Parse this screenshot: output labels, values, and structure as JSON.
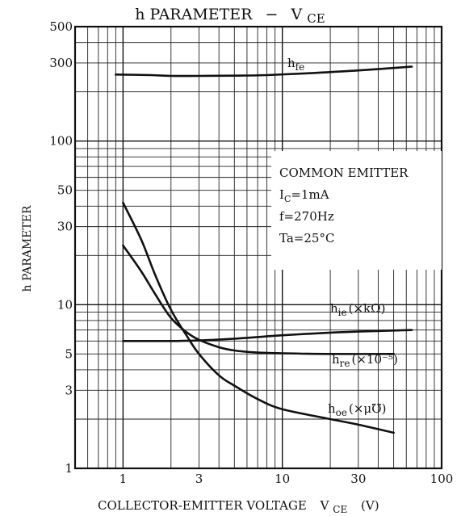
{
  "chart_data": {
    "type": "line",
    "title_main": "h PARAMETER",
    "title_sep": "−",
    "title_v": "V",
    "title_v_sub": "CE",
    "xlabel": "COLLECTOR-EMITTER VOLTAGE",
    "xlabel_v": "V",
    "xlabel_v_sub": "CE",
    "xlabel_unit": "(V)",
    "ylabel": "h PARAMETER",
    "x_scale": "log",
    "y_scale": "log",
    "xlim": [
      0.5,
      100
    ],
    "ylim": [
      1,
      500
    ],
    "grid": true,
    "x_ticks": [
      {
        "value": 1,
        "label": "1"
      },
      {
        "value": 3,
        "label": "3"
      },
      {
        "value": 10,
        "label": "10"
      },
      {
        "value": 30,
        "label": "30"
      },
      {
        "value": 100,
        "label": "100"
      }
    ],
    "y_ticks": [
      {
        "value": 1,
        "label": "1"
      },
      {
        "value": 3,
        "label": "3"
      },
      {
        "value": 5,
        "label": "5"
      },
      {
        "value": 10,
        "label": "10"
      },
      {
        "value": 30,
        "label": "30"
      },
      {
        "value": 50,
        "label": "50"
      },
      {
        "value": 100,
        "label": "100"
      },
      {
        "value": 300,
        "label": "300"
      },
      {
        "value": 500,
        "label": "500"
      }
    ],
    "conditions": {
      "line1": "COMMON EMITTER",
      "line2_pre": "I",
      "line2_sub": "C",
      "line2_post": "=1mA",
      "line3": "f=270Hz",
      "line4": "Ta=25°C"
    },
    "series": [
      {
        "name": "h_fe",
        "label_main": "h",
        "label_sub": "fe",
        "label_suffix": "",
        "x": [
          0.9,
          1.5,
          2,
          3,
          5,
          8,
          15,
          30,
          65
        ],
        "y": [
          255,
          253,
          250,
          250,
          251,
          253,
          260,
          270,
          285
        ]
      },
      {
        "name": "h_ie",
        "label_main": "h",
        "label_sub": "ie",
        "label_suffix": "(×kΩ)",
        "x": [
          1,
          2,
          3,
          5,
          10,
          20,
          30,
          65
        ],
        "y": [
          6.0,
          6.0,
          6.05,
          6.2,
          6.5,
          6.75,
          6.85,
          7.0
        ]
      },
      {
        "name": "h_re",
        "label_main": "h",
        "label_sub": "re",
        "label_suffix": "(×10⁻⁵)",
        "x": [
          1,
          1.3,
          1.6,
          2,
          2.5,
          3,
          4,
          5,
          7,
          10,
          20,
          50
        ],
        "y": [
          23,
          16,
          11.5,
          8.3,
          6.8,
          6.1,
          5.5,
          5.25,
          5.1,
          5.05,
          5.0,
          5.0
        ]
      },
      {
        "name": "h_oe",
        "label_main": "h",
        "label_sub": "oe",
        "label_suffix": "(×μ℧)",
        "x": [
          1,
          1.3,
          1.6,
          2,
          2.5,
          3,
          4,
          5,
          7,
          10,
          20,
          30,
          50
        ],
        "y": [
          42,
          25,
          15,
          9.3,
          6.5,
          5.0,
          3.7,
          3.2,
          2.65,
          2.3,
          2.0,
          1.85,
          1.65
        ]
      }
    ]
  }
}
